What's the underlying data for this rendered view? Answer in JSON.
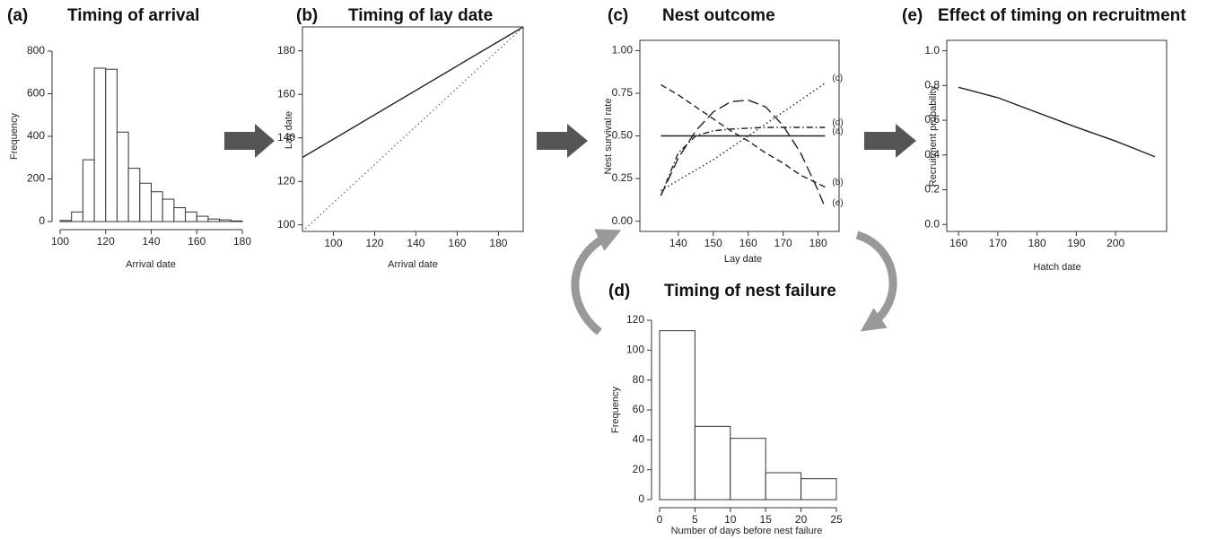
{
  "chart_data": [
    {
      "type": "histogram",
      "panel": "(a)",
      "title": "Timing of arrival",
      "xlabel": "Arrival date",
      "ylabel": "Frequency",
      "bins": [
        100,
        105,
        110,
        115,
        120,
        125,
        130,
        135,
        140,
        145,
        150,
        155,
        160,
        165,
        170,
        175,
        180
      ],
      "values": [
        5,
        45,
        290,
        720,
        715,
        420,
        250,
        180,
        140,
        105,
        65,
        45,
        25,
        12,
        8,
        3
      ],
      "color": "#ffffff",
      "xlim": [
        100,
        180
      ],
      "ylim": [
        0,
        800
      ],
      "xticks": [
        100,
        120,
        140,
        160,
        180
      ],
      "yticks": [
        0,
        200,
        400,
        600,
        800
      ]
    },
    {
      "type": "line",
      "panel": "(b)",
      "title": "Timing of lay date",
      "xlabel": "Arrival date",
      "ylabel": "Lay date",
      "x": [
        85,
        192
      ],
      "series": [
        {
          "color": "#222222",
          "style": "solid",
          "values": [
            131,
            191
          ]
        },
        {
          "color": "#777777",
          "style": "dotted",
          "values": [
            97,
            191
          ]
        }
      ],
      "xlim": [
        85,
        192
      ],
      "ylim": [
        97,
        191
      ],
      "xticks": [
        100,
        120,
        140,
        160,
        180
      ],
      "yticks": [
        100,
        120,
        140,
        160,
        180
      ]
    },
    {
      "type": "line",
      "panel": "(c)",
      "title": "Nest outcome",
      "xlabel": "Lay date",
      "ylabel": "Nest survival rate",
      "x": [
        135,
        140,
        145,
        150,
        155,
        160,
        165,
        170,
        175,
        180,
        182
      ],
      "series": [
        {
          "name": "(a)",
          "color": "#222222",
          "style": "solid",
          "values": [
            0.5,
            0.5,
            0.5,
            0.5,
            0.5,
            0.5,
            0.5,
            0.5,
            0.5,
            0.5,
            0.5
          ]
        },
        {
          "name": "(b)",
          "color": "#222222",
          "style": "dashed",
          "values": [
            0.8,
            0.74,
            0.67,
            0.6,
            0.53,
            0.47,
            0.4,
            0.34,
            0.27,
            0.22,
            0.2
          ]
        },
        {
          "name": "(c)",
          "color": "#222222",
          "style": "dotted",
          "values": [
            0.18,
            0.24,
            0.3,
            0.36,
            0.43,
            0.5,
            0.57,
            0.64,
            0.71,
            0.78,
            0.81
          ]
        },
        {
          "name": "(d)",
          "color": "#222222",
          "style": "dashdot",
          "values": [
            0.15,
            0.4,
            0.5,
            0.53,
            0.54,
            0.545,
            0.55,
            0.55,
            0.55,
            0.55,
            0.55
          ]
        },
        {
          "name": "(e)",
          "color": "#222222",
          "style": "longdash",
          "values": [
            0.15,
            0.37,
            0.53,
            0.64,
            0.7,
            0.71,
            0.67,
            0.56,
            0.4,
            0.18,
            0.08
          ]
        }
      ],
      "xlim": [
        129,
        186
      ],
      "ylim": [
        -0.06,
        1.06
      ],
      "xticks": [
        140,
        150,
        160,
        170,
        180
      ],
      "yticks": [
        {
          "value": 0,
          "label": "0.00"
        },
        0.25,
        {
          "value": 0.5,
          "label": "0.50"
        },
        0.75,
        {
          "value": 1,
          "label": "1.00"
        }
      ]
    },
    {
      "type": "histogram",
      "panel": "(d)",
      "title": "Timing of nest failure",
      "xlabel": "Number of days before nest failure",
      "ylabel": "Frequency",
      "bins": [
        0,
        5,
        10,
        15,
        20,
        25
      ],
      "values": [
        113,
        49,
        41,
        18,
        14
      ],
      "color": "#ffffff",
      "xlim": [
        0,
        25
      ],
      "ylim": [
        0,
        120
      ],
      "xticks": [
        0,
        5,
        10,
        15,
        20,
        25
      ],
      "yticks": [
        0,
        20,
        40,
        60,
        80,
        100,
        120
      ]
    },
    {
      "type": "line",
      "panel": "(e)",
      "title": "Effect of timing on recruitment",
      "xlabel": "Hatch date",
      "ylabel": "Recruitment probability",
      "x": [
        160,
        170,
        180,
        190,
        200,
        210
      ],
      "series": [
        {
          "color": "#222222",
          "style": "solid",
          "values": [
            0.79,
            0.73,
            0.645,
            0.56,
            0.48,
            0.39
          ]
        }
      ],
      "xlim": [
        157,
        213
      ],
      "ylim": [
        -0.04,
        1.06
      ],
      "xticks": [
        160,
        170,
        180,
        190,
        200
      ],
      "yticks": [
        {
          "value": 0,
          "label": "0.0"
        },
        0.2,
        0.4,
        0.6,
        0.8,
        {
          "value": 1,
          "label": "1.0"
        }
      ]
    }
  ]
}
